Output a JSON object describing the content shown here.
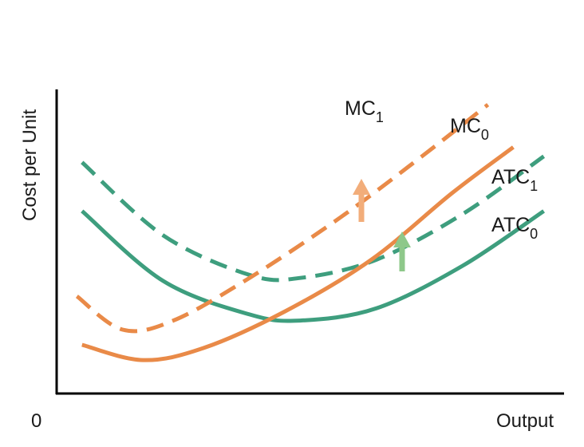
{
  "chart_data": {
    "type": "line",
    "title": "",
    "xlabel": "Output",
    "ylabel": "Cost per Unit",
    "origin_label": "0",
    "grid": false,
    "legend": "none",
    "series": [
      {
        "name": "ATC",
        "subscript": "1",
        "style": "dashed",
        "color": "#3e9e7e",
        "points": [
          [
            0.05,
            0.76
          ],
          [
            0.21,
            0.52
          ],
          [
            0.38,
            0.39
          ],
          [
            0.48,
            0.38
          ],
          [
            0.63,
            0.44
          ],
          [
            0.8,
            0.59
          ],
          [
            0.96,
            0.78
          ]
        ]
      },
      {
        "name": "ATC",
        "subscript": "0",
        "style": "solid",
        "color": "#3e9e7e",
        "points": [
          [
            0.05,
            0.6
          ],
          [
            0.21,
            0.37
          ],
          [
            0.38,
            0.26
          ],
          [
            0.48,
            0.24
          ],
          [
            0.63,
            0.28
          ],
          [
            0.8,
            0.42
          ],
          [
            0.96,
            0.6
          ]
        ]
      },
      {
        "name": "MC",
        "subscript": "1",
        "style": "dashed",
        "color": "#e98a48",
        "points": [
          [
            0.04,
            0.32
          ],
          [
            0.13,
            0.21
          ],
          [
            0.23,
            0.24
          ],
          [
            0.38,
            0.38
          ],
          [
            0.56,
            0.58
          ],
          [
            0.72,
            0.78
          ],
          [
            0.85,
            0.95
          ]
        ]
      },
      {
        "name": "MC",
        "subscript": "0",
        "style": "solid",
        "color": "#e98a48",
        "points": [
          [
            0.05,
            0.16
          ],
          [
            0.17,
            0.11
          ],
          [
            0.29,
            0.15
          ],
          [
            0.45,
            0.27
          ],
          [
            0.62,
            0.44
          ],
          [
            0.78,
            0.66
          ],
          [
            0.9,
            0.81
          ]
        ]
      }
    ],
    "arrows": [
      {
        "points_to": "MC 1",
        "color": "#f2ad7a"
      },
      {
        "points_to": "ATC 1",
        "color": "#8ec88a"
      }
    ]
  }
}
